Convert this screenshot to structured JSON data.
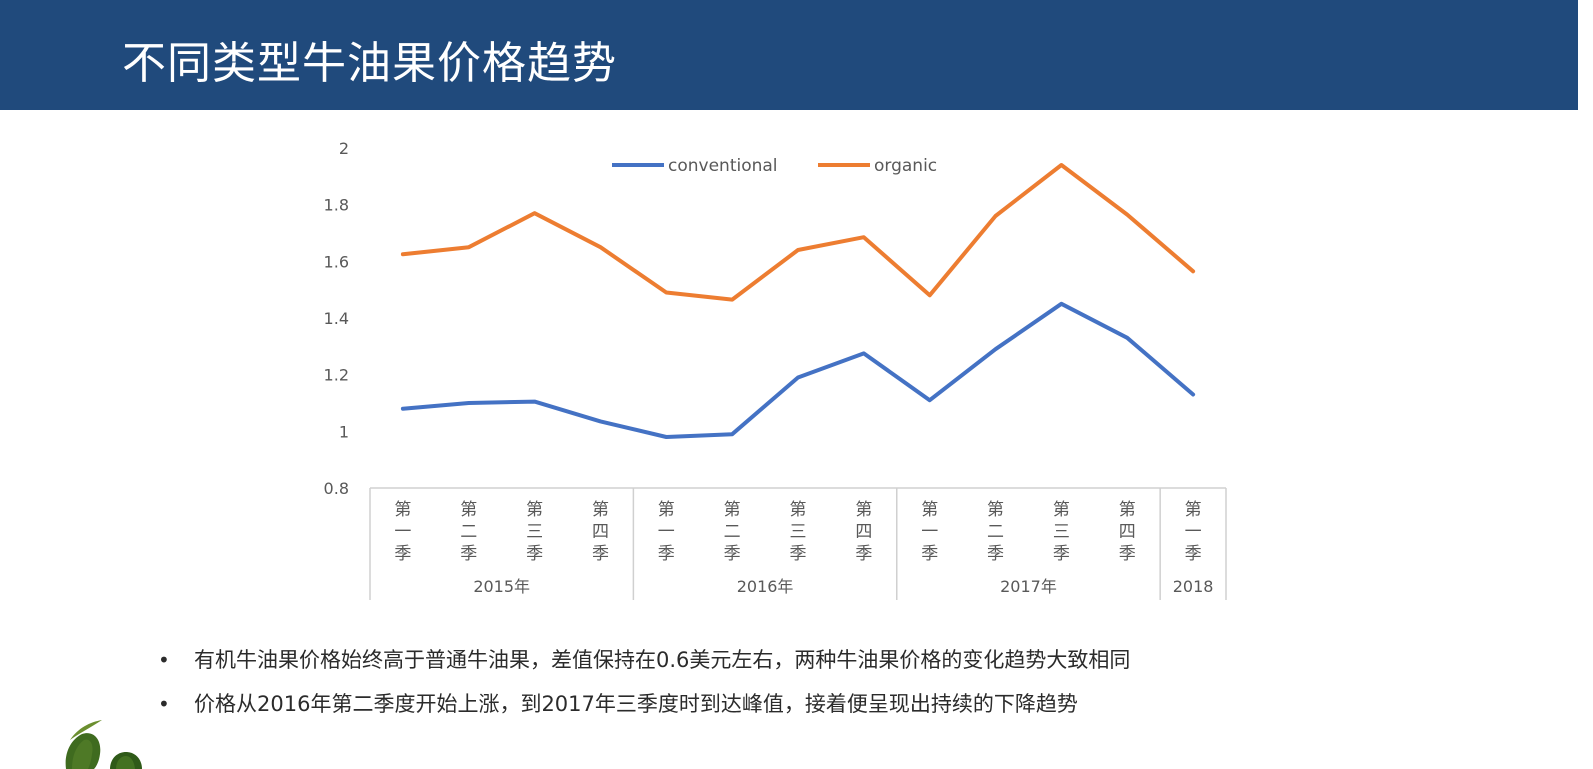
{
  "header": {
    "title": "不同类型牛油果价格趋势"
  },
  "chart_data": {
    "type": "line",
    "title": "",
    "xlabel": "",
    "ylabel": "",
    "ylim": [
      0.8,
      2
    ],
    "yticks": [
      "0.8",
      "1",
      "1.2",
      "1.4",
      "1.6",
      "1.8",
      "2"
    ],
    "legend_position": "top",
    "grid": false,
    "categories": [
      "第一季",
      "第二季",
      "第三季",
      "第四季",
      "第一季",
      "第二季",
      "第三季",
      "第四季",
      "第一季",
      "第二季",
      "第三季",
      "第四季",
      "第一季"
    ],
    "category_labels": [
      [
        "第",
        "一",
        "季"
      ],
      [
        "第",
        "二",
        "季"
      ],
      [
        "第",
        "三",
        "季"
      ],
      [
        "第",
        "四",
        "季"
      ],
      [
        "第",
        "一",
        "季"
      ],
      [
        "第",
        "二",
        "季"
      ],
      [
        "第",
        "三",
        "季"
      ],
      [
        "第",
        "四",
        "季"
      ],
      [
        "第",
        "一",
        "季"
      ],
      [
        "第",
        "二",
        "季"
      ],
      [
        "第",
        "三",
        "季"
      ],
      [
        "第",
        "四",
        "季"
      ],
      [
        "第",
        "一",
        "季"
      ]
    ],
    "groups": [
      {
        "label": "2015年",
        "count": 4
      },
      {
        "label": "2016年",
        "count": 4
      },
      {
        "label": "2017年",
        "count": 4
      },
      {
        "label": "2018",
        "count": 1
      }
    ],
    "series": [
      {
        "name": "conventional",
        "color": "#4472c4",
        "values": [
          1.08,
          1.1,
          1.105,
          1.035,
          0.98,
          0.99,
          1.19,
          1.275,
          1.11,
          1.29,
          1.45,
          1.33,
          1.13
        ]
      },
      {
        "name": "organic",
        "color": "#ed7d31",
        "values": [
          1.625,
          1.65,
          1.77,
          1.65,
          1.49,
          1.465,
          1.64,
          1.685,
          1.48,
          1.76,
          1.94,
          1.765,
          1.565
        ]
      }
    ]
  },
  "bullets": [
    "有机牛油果价格始终高于普通牛油果，差值保持在0.6美元左右，两种牛油果价格的变化趋势大致相同",
    "价格从2016年第二季度开始上涨，到2017年三季度时到达峰值，接着便呈现出持续的下降趋势"
  ]
}
